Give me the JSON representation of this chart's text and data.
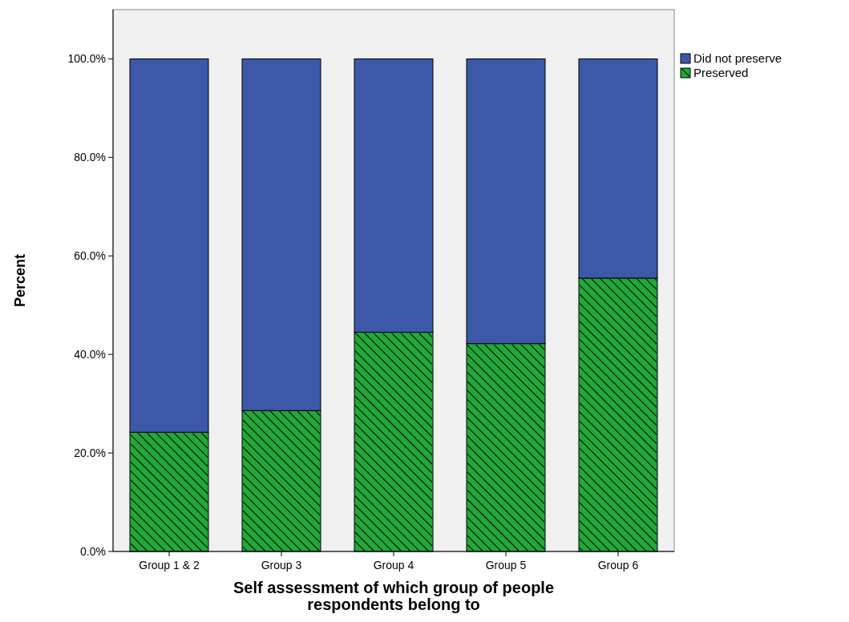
{
  "chart_data": {
    "type": "bar",
    "stacked": true,
    "xlabel": "Self assessment of which group of people\nrespondents belong to",
    "ylabel": "Percent",
    "categories": [
      "Group 1 & 2",
      "Group 3",
      "Group 4",
      "Group 5",
      "Group 6"
    ],
    "series": [
      {
        "name": "Preserved",
        "color": "#21a73a",
        "values": [
          24.2,
          28.6,
          44.5,
          42.2,
          55.5
        ]
      },
      {
        "name": "Did not preserve",
        "color": "#3d58a9",
        "values": [
          75.8,
          71.4,
          55.5,
          57.8,
          44.5
        ]
      }
    ],
    "ylim": [
      0,
      110
    ],
    "yticks": [
      {
        "value": 0,
        "label": "0.0%"
      },
      {
        "value": 20,
        "label": "20.0%"
      },
      {
        "value": 40,
        "label": "40.0%"
      },
      {
        "value": 60,
        "label": "60.0%"
      },
      {
        "value": 80,
        "label": "80.0%"
      },
      {
        "value": 100,
        "label": "100.0%"
      }
    ],
    "legend": "top right",
    "grid": false
  }
}
